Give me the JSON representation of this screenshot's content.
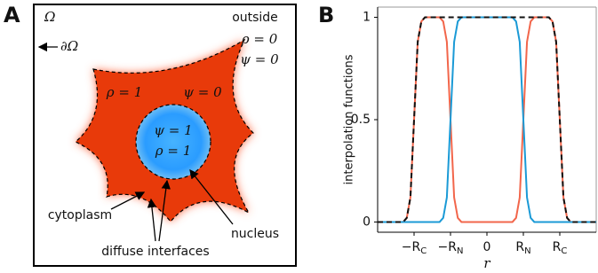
{
  "panel_a": {
    "label": "A",
    "domain": "Ω",
    "boundary": "∂Ω",
    "outside": {
      "label": "outside",
      "rho": "ρ = 0",
      "psi": "ψ = 0"
    },
    "cytoplasm": {
      "rho": "ρ = 1",
      "psi": "ψ = 0",
      "label": "cytoplasm"
    },
    "nucleus": {
      "psi": "ψ = 1",
      "rho": "ρ = 1",
      "label": "nucleus"
    },
    "interfaces": "diffuse interfaces"
  },
  "chart_data": {
    "type": "line",
    "panel_label": "B",
    "x_label": "r",
    "y_label": "interpolation functions",
    "x": [
      -3,
      -2.9,
      -2.8,
      -2.7,
      -2.6,
      -2.5,
      -2.4,
      -2.3,
      -2.2,
      -2.1,
      -2,
      -1.9,
      -1.8,
      -1.7,
      -1.6,
      -1.5,
      -1.4,
      -1.3,
      -1.2,
      -1.1,
      -1,
      -0.9,
      -0.8,
      -0.7,
      -0.6,
      -0.5,
      -0.4,
      -0.3,
      -0.2,
      -0.1,
      0,
      0.1,
      0.2,
      0.3,
      0.4,
      0.5,
      0.6,
      0.7,
      0.8,
      0.9,
      1,
      1.1,
      1.2,
      1.3,
      1.4,
      1.5,
      1.6,
      1.7,
      1.8,
      1.9,
      2,
      2.1,
      2.2,
      2.3,
      2.4,
      2.5,
      2.6,
      2.7,
      2.8,
      2.9,
      3
    ],
    "series": [
      {
        "color": "#f2664b",
        "dashed": false,
        "values": [
          0,
          0,
          0,
          0,
          0,
          0,
          0,
          0,
          0.02,
          0.12,
          0.5,
          0.88,
          0.98,
          1,
          1,
          1,
          1,
          1,
          0.98,
          0.88,
          0.5,
          0.12,
          0.02,
          0,
          0,
          0,
          0,
          0,
          0,
          0,
          0,
          0,
          0,
          0,
          0,
          0,
          0,
          0,
          0.02,
          0.12,
          0.5,
          0.88,
          0.98,
          1,
          1,
          1,
          1,
          1,
          0.98,
          0.88,
          0.5,
          0.12,
          0.02,
          0,
          0,
          0,
          0,
          0,
          0,
          0,
          0
        ]
      },
      {
        "color": "#1b9ad6",
        "dashed": false,
        "values": [
          0,
          0,
          0,
          0,
          0,
          0,
          0,
          0,
          0,
          0,
          0,
          0,
          0,
          0,
          0,
          0,
          0,
          0,
          0.02,
          0.12,
          0.5,
          0.88,
          0.98,
          1,
          1,
          1,
          1,
          1,
          1,
          1,
          1,
          1,
          1,
          1,
          1,
          1,
          1,
          1,
          0.98,
          0.88,
          0.5,
          0.12,
          0.02,
          0,
          0,
          0,
          0,
          0,
          0,
          0,
          0,
          0,
          0,
          0,
          0,
          0,
          0,
          0,
          0,
          0,
          0
        ]
      },
      {
        "color": "#111111",
        "dashed": true,
        "values": [
          0,
          0,
          0,
          0,
          0,
          0,
          0,
          0,
          0.02,
          0.12,
          0.5,
          0.88,
          0.98,
          1,
          1,
          1,
          1,
          1,
          1,
          1,
          1,
          1,
          1,
          1,
          1,
          1,
          1,
          1,
          1,
          1,
          1,
          1,
          1,
          1,
          1,
          1,
          1,
          1,
          1,
          1,
          1,
          1,
          1,
          1,
          1,
          1,
          1,
          1,
          0.98,
          0.88,
          0.5,
          0.12,
          0.02,
          0,
          0,
          0,
          0,
          0,
          0,
          0,
          0
        ]
      }
    ],
    "xlim": [
      -3,
      3
    ],
    "xticks": [
      {
        "value": -2,
        "label": "−RC"
      },
      {
        "value": -1,
        "label": "−RN"
      },
      0,
      {
        "value": 1,
        "label": "RN"
      },
      {
        "value": 2,
        "label": "RC"
      }
    ],
    "ylim": [
      -0.05,
      1.05
    ],
    "yticks": [
      0,
      0.5,
      1
    ]
  }
}
